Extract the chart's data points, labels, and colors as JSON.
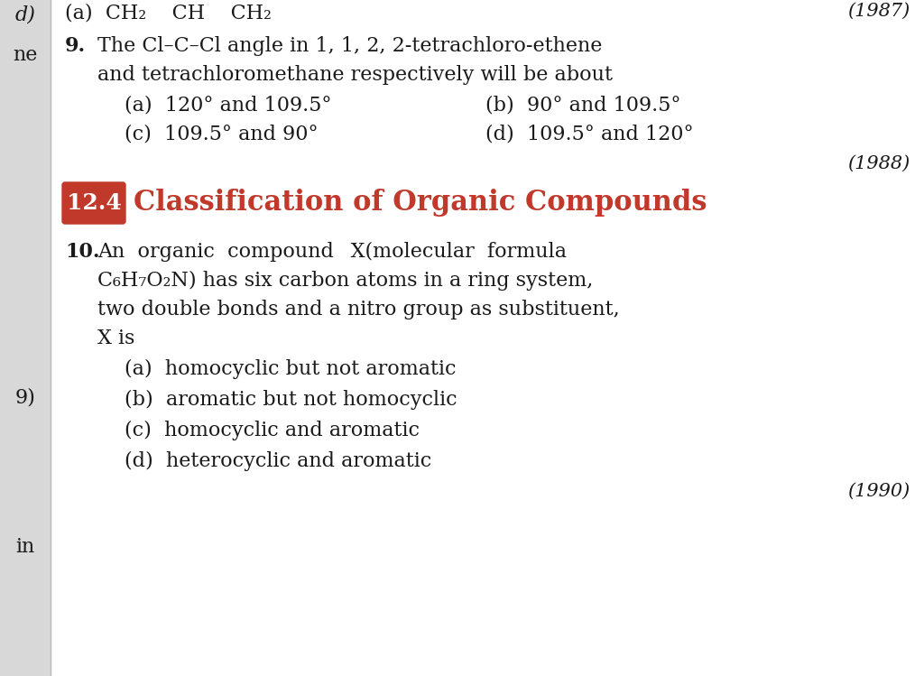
{
  "bg_color": "#ffffff",
  "left_bar_color": "#d8d8d8",
  "section_box_color": "#c0392b",
  "section_title_color": "#c0392b",
  "text_color": "#1a1a1a",
  "q9_number": "9.",
  "q9_line1": "The Cl–C–Cl angle in 1, 1, 2, 2-tetrachloro-ethene",
  "q9_line2": "and tetrachloromethane respectively will be about",
  "q9_a": "(a)  120° and 109.5°",
  "q9_b": "(b)  90° and 109.5°",
  "q9_c": "(c)  109.5° and 90°",
  "q9_d": "(d)  109.5° and 120°",
  "q9_year": "(1988)",
  "section_num": "12.4",
  "section_title": "Classification of Organic Compounds",
  "q10_number": "10.",
  "q10_line1": "An  organic  compound   X(molecular  formula",
  "q10_line2": "C₆H₇O₂N) has six carbon atoms in a ring system,",
  "q10_line3": "two double bonds and a nitro group as substituent,",
  "q10_line4": "X is",
  "q10_a": "(a)  homocyclic but not aromatic",
  "q10_b": "(b)  aromatic but not homocyclic",
  "q10_c": "(c)  homocyclic and aromatic",
  "q10_d": "(d)  heterocyclic and aromatic",
  "q10_year": "(1990)",
  "top_partial_left": "(a)  CH₂    CH    CH₂",
  "top_partial_right": "(1987)",
  "left_d": "d)",
  "left_ne": "ne",
  "left_9": "9)",
  "left_in": "in",
  "font_size_body": 16,
  "font_size_section": 22,
  "font_size_badge": 18
}
